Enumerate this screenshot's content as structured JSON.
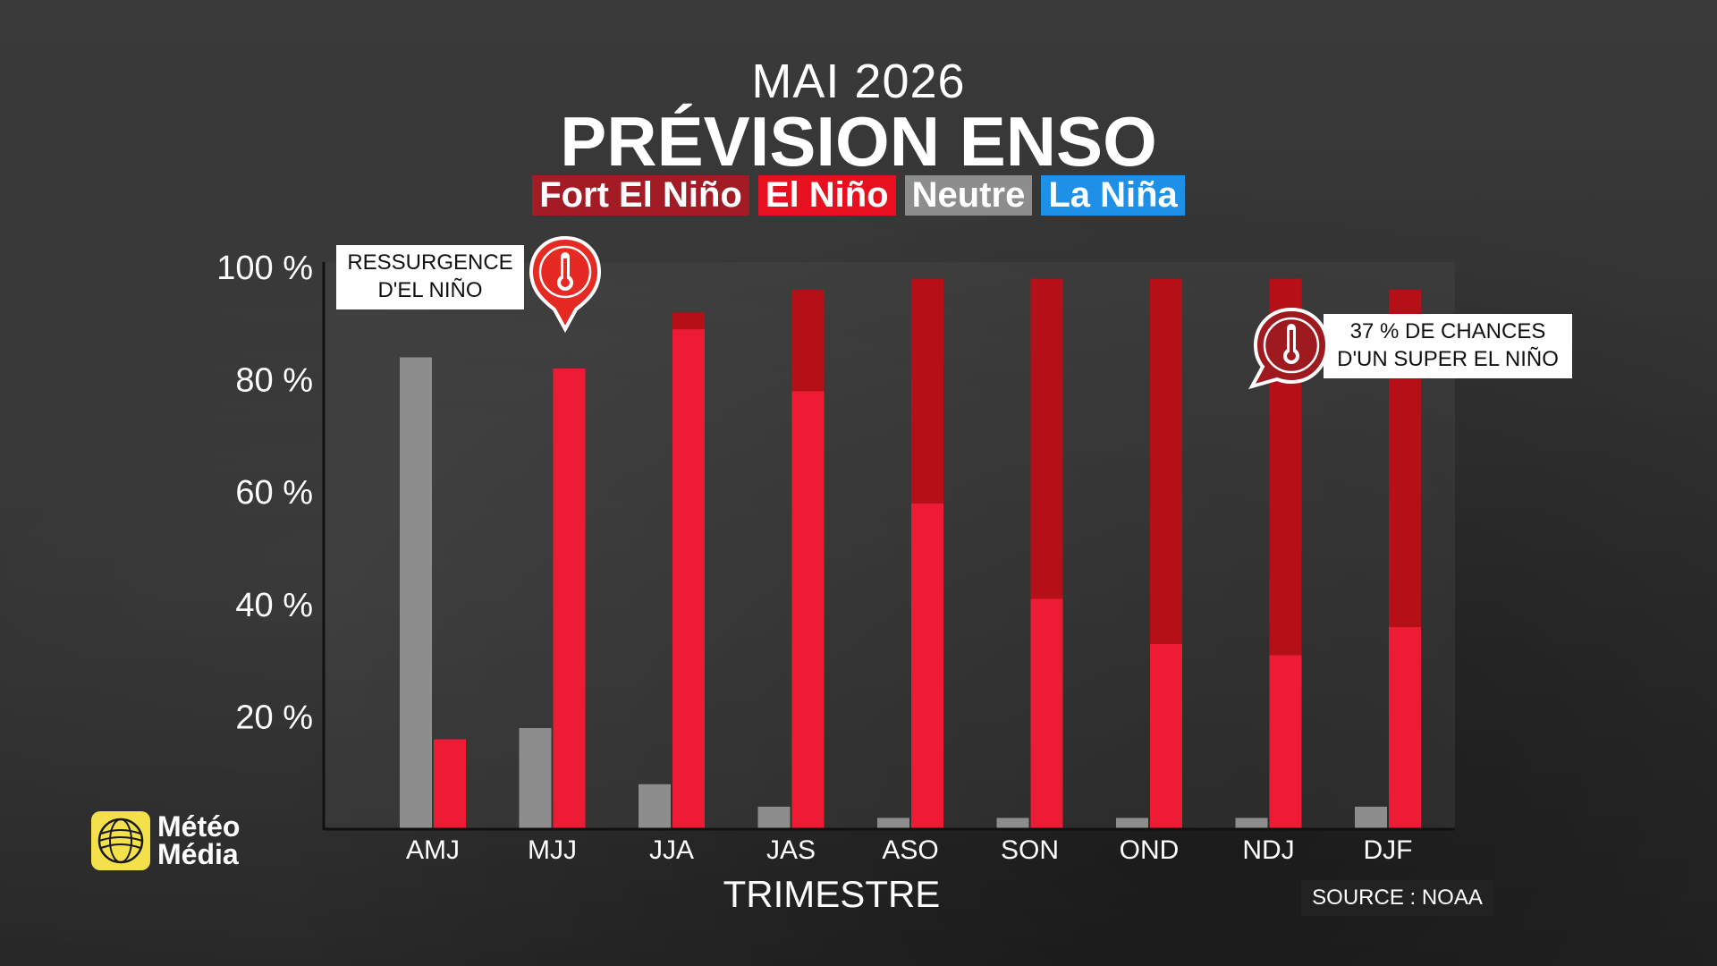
{
  "header": {
    "month": "MAI 2026",
    "title": "PRÉVISION ENSO"
  },
  "legend": [
    {
      "label": "Fort El Niño",
      "color": "#a31c25"
    },
    {
      "label": "El Niño",
      "color": "#e8101e"
    },
    {
      "label": "Neutre",
      "color": "#8d8d8d"
    },
    {
      "label": "La Niña",
      "color": "#1e90e8"
    }
  ],
  "callouts": {
    "resurgence_line1": "RESSURGENCE",
    "resurgence_line2": "D'EL NIÑO",
    "super_line1": "37 % DE CHANCES",
    "super_line2": "D'UN SUPER EL NIÑO"
  },
  "logo": {
    "line1": "Météo",
    "line2": "Média"
  },
  "source": "SOURCE : NOAA",
  "chart_data": {
    "type": "bar",
    "title": "PRÉVISION ENSO",
    "subtitle": "MAI 2026",
    "xlabel": "TRIMESTRE",
    "ylabel": "",
    "categories": [
      "AMJ",
      "MJJ",
      "JJA",
      "JAS",
      "ASO",
      "SON",
      "OND",
      "NDJ",
      "DJF"
    ],
    "ylim": [
      0,
      100
    ],
    "yticks": [
      20,
      40,
      60,
      80,
      100
    ],
    "ytick_labels": [
      "20 %",
      "40 %",
      "60 %",
      "80 %",
      "100 %"
    ],
    "series": [
      {
        "name": "Neutre",
        "color": "#8d8d8d",
        "values": [
          84,
          18,
          8,
          4,
          2,
          2,
          2,
          2,
          4
        ]
      },
      {
        "name": "El Niño",
        "color": "#ee1b34",
        "values": [
          16,
          82,
          89,
          78,
          58,
          41,
          33,
          31,
          36
        ]
      },
      {
        "name": "Fort El Niño",
        "color": "#b50f17",
        "values": [
          0,
          0,
          3,
          18,
          40,
          57,
          65,
          67,
          60
        ]
      }
    ],
    "stacked_series": [
      "El Niño",
      "Fort El Niño"
    ],
    "grid": false,
    "legend_position": "top"
  }
}
